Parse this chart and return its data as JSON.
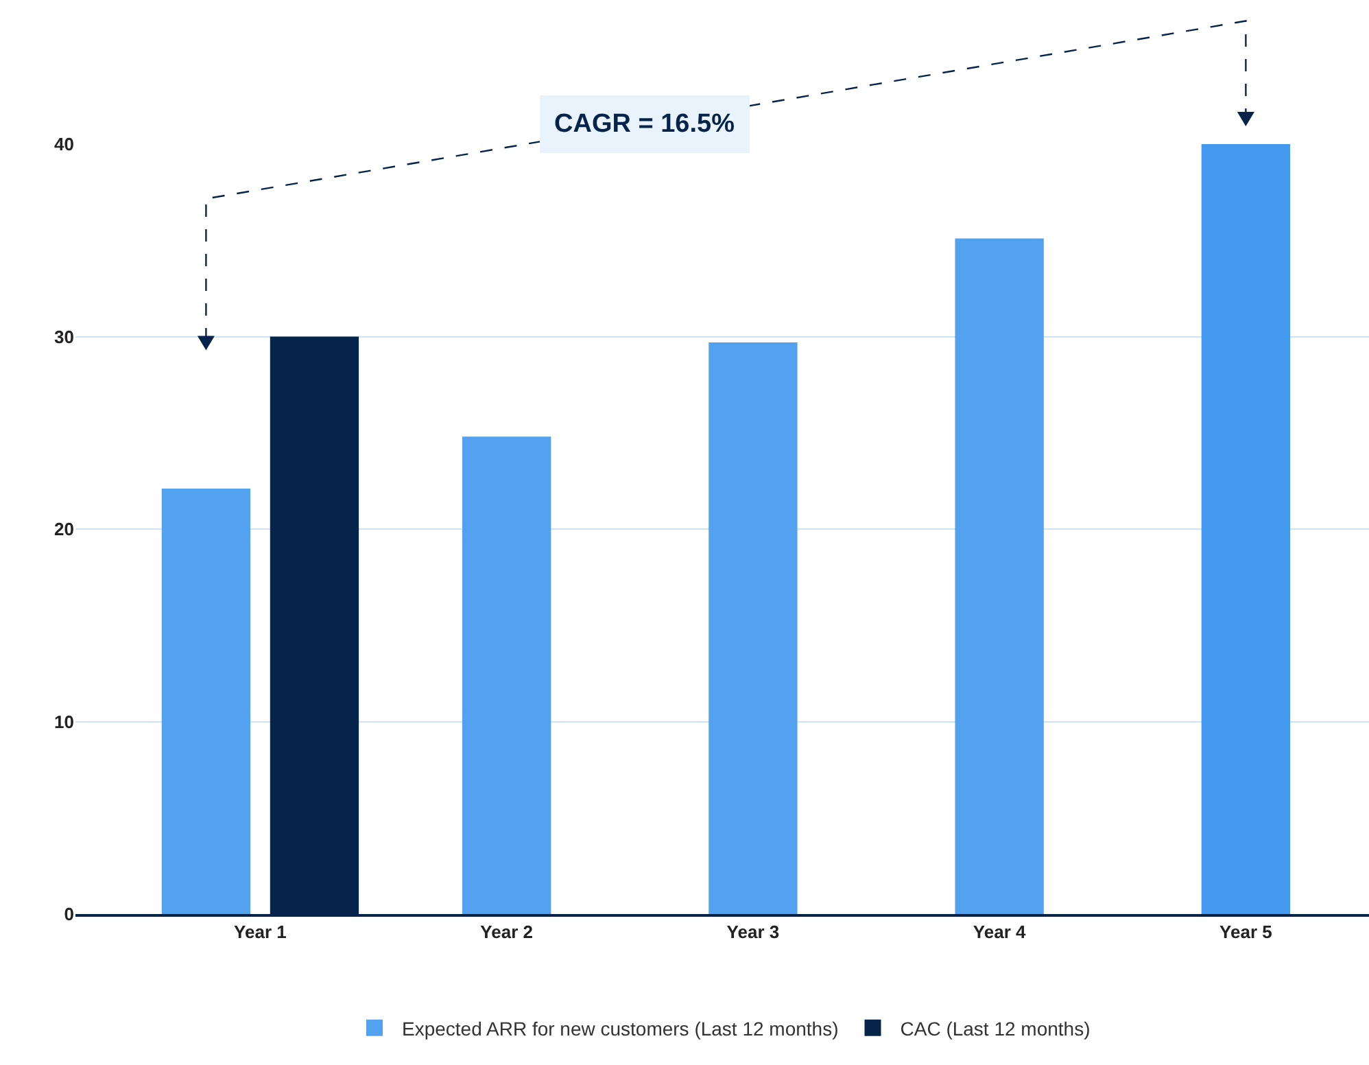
{
  "chart_data": {
    "type": "bar",
    "categories": [
      "Year 1",
      "Year 2",
      "Year 3",
      "Year 4",
      "Year 5"
    ],
    "series": [
      {
        "name": "Expected ARR for new customers (Last 12 months)",
        "color": "#52a2f0",
        "colors": [
          "#52a2f0",
          "#52a2f0",
          "#52a2f0",
          "#52a2f0",
          "#4299ee"
        ],
        "values": [
          22.1,
          24.8,
          29.7,
          35.1,
          40
        ]
      },
      {
        "name": "CAC (Last 12 months)",
        "color": "#06244a",
        "values": [
          30,
          null,
          null,
          null,
          null
        ]
      }
    ],
    "ylim": [
      0,
      40
    ],
    "yticks": [
      0,
      10,
      20,
      30,
      40
    ],
    "grid": "y",
    "legend": "bottom",
    "annotations": [
      "CAGR = 16.5%"
    ]
  }
}
